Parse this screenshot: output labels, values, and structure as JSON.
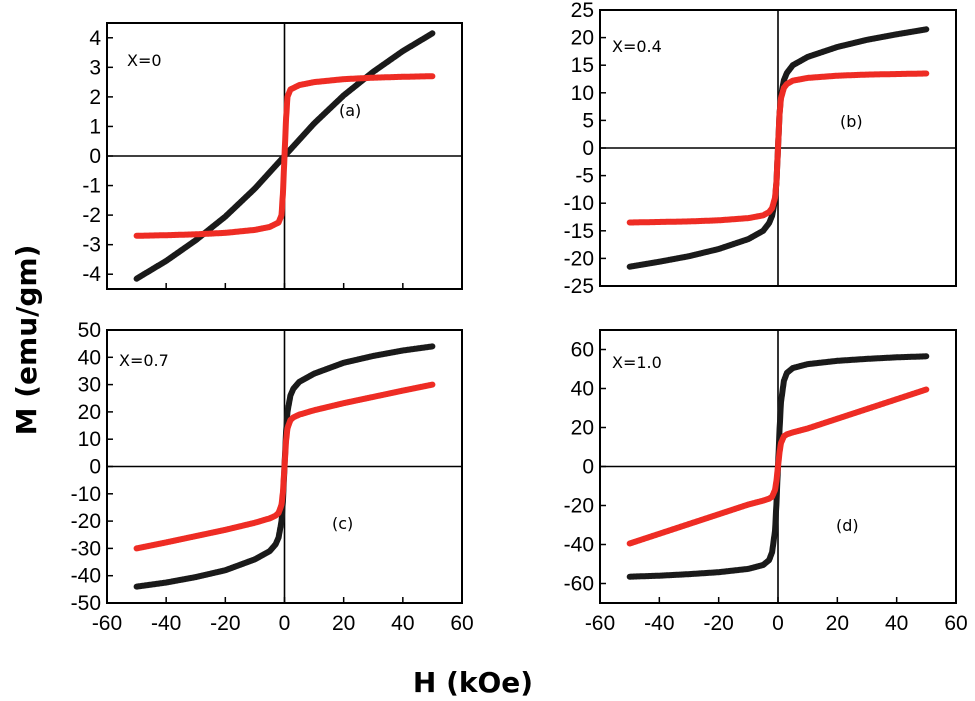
{
  "figure": {
    "ylabel": "M (emu/gm)",
    "xlabel": "H (kOe)"
  },
  "chart_data": [
    {
      "type": "line",
      "composition": "X=0",
      "panel": "(a)",
      "xlim": [
        -60,
        60
      ],
      "ylim": [
        -4.5,
        4.5
      ],
      "xticks": [
        -60,
        -40,
        -20,
        0,
        20,
        40,
        60
      ],
      "yticks": [
        -4,
        -3,
        -2,
        -1,
        0,
        1,
        2,
        3,
        4
      ],
      "grid": false,
      "series": [
        {
          "color": "#1a1a1a",
          "x": [
            -50,
            -40,
            -30,
            -20,
            -10,
            0,
            10,
            20,
            30,
            40,
            50
          ],
          "y": [
            -4.15,
            -3.55,
            -2.85,
            -2.05,
            -1.1,
            0,
            1.1,
            2.05,
            2.85,
            3.55,
            4.15
          ]
        },
        {
          "color": "#ee2c24",
          "x": [
            -50,
            -40,
            -30,
            -20,
            -10,
            -5,
            -2,
            -1,
            -0.5,
            0,
            0.5,
            1,
            2,
            5,
            10,
            20,
            30,
            40,
            50
          ],
          "y": [
            -2.7,
            -2.68,
            -2.65,
            -2.6,
            -2.5,
            -2.4,
            -2.25,
            -2.0,
            -1.2,
            0,
            1.2,
            2.0,
            2.25,
            2.4,
            2.5,
            2.6,
            2.65,
            2.68,
            2.7
          ]
        }
      ]
    },
    {
      "type": "line",
      "composition": "X=0.4",
      "panel": "(b)",
      "xlim": [
        -60,
        60
      ],
      "ylim": [
        -25,
        25
      ],
      "xticks": [],
      "yticks": [
        -25,
        -20,
        -15,
        -10,
        -5,
        0,
        5,
        10,
        15,
        20,
        25
      ],
      "grid": false,
      "series": [
        {
          "color": "#1a1a1a",
          "x": [
            -50,
            -40,
            -30,
            -20,
            -10,
            -5,
            -3,
            -2,
            -1,
            -0.5,
            0,
            0.5,
            1,
            2,
            3,
            5,
            10,
            20,
            30,
            40,
            50
          ],
          "y": [
            -21.5,
            -20.6,
            -19.6,
            -18.3,
            -16.5,
            -15.0,
            -13.6,
            -12.3,
            -9.5,
            -6.0,
            0,
            6.0,
            9.5,
            12.3,
            13.6,
            15.0,
            16.5,
            18.3,
            19.6,
            20.6,
            21.5
          ]
        },
        {
          "color": "#ee2c24",
          "x": [
            -50,
            -40,
            -30,
            -20,
            -10,
            -5,
            -3,
            -2,
            -1,
            -0.5,
            0,
            0.5,
            1,
            2,
            3,
            5,
            10,
            20,
            30,
            40,
            50
          ],
          "y": [
            -13.5,
            -13.4,
            -13.3,
            -13.1,
            -12.7,
            -12.2,
            -11.6,
            -10.9,
            -9.0,
            -6.0,
            0,
            6.0,
            9.0,
            10.9,
            11.6,
            12.2,
            12.7,
            13.1,
            13.3,
            13.4,
            13.5
          ]
        }
      ]
    },
    {
      "type": "line",
      "composition": "X=0.7",
      "panel": "(c)",
      "xlim": [
        -60,
        60
      ],
      "ylim": [
        -50,
        50
      ],
      "xticks": [
        -60,
        -40,
        -20,
        0,
        20,
        40,
        60
      ],
      "yticks": [
        -50,
        -40,
        -30,
        -20,
        -10,
        0,
        10,
        20,
        30,
        40,
        50
      ],
      "grid": false,
      "series": [
        {
          "color": "#1a1a1a",
          "x": [
            -50,
            -40,
            -30,
            -20,
            -10,
            -5,
            -3,
            -2,
            -1,
            -0.5,
            0,
            0.5,
            1,
            2,
            3,
            5,
            10,
            20,
            30,
            40,
            50
          ],
          "y": [
            -44,
            -42.5,
            -40.5,
            -38,
            -34,
            -31,
            -28.5,
            -26,
            -20,
            -12,
            0,
            12,
            20,
            26,
            28.5,
            31,
            34,
            38,
            40.5,
            42.5,
            44
          ]
        },
        {
          "color": "#ee2c24",
          "x": [
            -50,
            -40,
            -30,
            -20,
            -10,
            -5,
            -3,
            -2,
            -1,
            -0.5,
            0,
            0.5,
            1,
            2,
            3,
            5,
            10,
            20,
            30,
            40,
            50
          ],
          "y": [
            -30,
            -27.8,
            -25.5,
            -23.2,
            -20.6,
            -19,
            -18,
            -17,
            -14,
            -9,
            0,
            9,
            14,
            17,
            18,
            19,
            20.6,
            23.2,
            25.5,
            27.8,
            30
          ]
        }
      ]
    },
    {
      "type": "line",
      "composition": "X=1.0",
      "panel": "(d)",
      "xlim": [
        -60,
        60
      ],
      "ylim": [
        -70,
        70
      ],
      "xticks": [
        -60,
        -40,
        -20,
        0,
        20,
        40,
        60
      ],
      "yticks": [
        -60,
        -40,
        -20,
        0,
        20,
        40,
        60
      ],
      "grid": false,
      "series": [
        {
          "color": "#1a1a1a",
          "x": [
            -50,
            -40,
            -30,
            -20,
            -10,
            -5,
            -3,
            -2,
            -1,
            -0.5,
            0,
            0.5,
            1,
            2,
            3,
            5,
            10,
            20,
            30,
            40,
            50
          ],
          "y": [
            -56.5,
            -56,
            -55.2,
            -54.2,
            -52.5,
            -50.5,
            -48,
            -44,
            -33,
            -18,
            0,
            18,
            33,
            44,
            48,
            50.5,
            52.5,
            54.2,
            55.2,
            56,
            56.5
          ]
        },
        {
          "color": "#ee2c24",
          "x": [
            -50,
            -40,
            -30,
            -20,
            -10,
            -5,
            -3,
            -2,
            -1,
            -0.5,
            0,
            0.5,
            1,
            2,
            3,
            5,
            10,
            20,
            30,
            40,
            50
          ],
          "y": [
            -39.5,
            -34.5,
            -29.5,
            -24.5,
            -19.5,
            -17.5,
            -16.5,
            -15.5,
            -12,
            -7,
            0,
            7,
            12,
            15.5,
            16.5,
            17.5,
            19.5,
            24.5,
            29.5,
            34.5,
            39.5
          ]
        }
      ]
    }
  ]
}
